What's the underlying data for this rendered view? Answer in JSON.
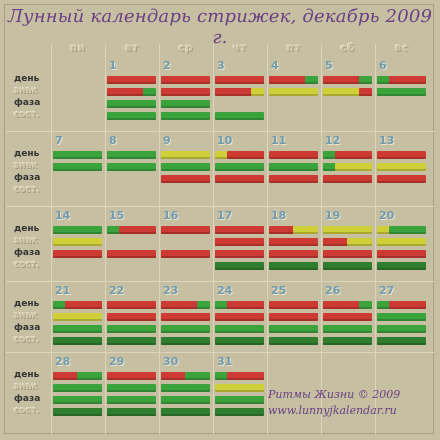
{
  "title": "Лунный календарь стрижек, декабрь 2009 г.",
  "weekdays": [
    "пн",
    "вт",
    "ср",
    "чт",
    "пт",
    "сб",
    "вс"
  ],
  "row_labels": [
    "день",
    "знак",
    "фаза",
    "сост."
  ],
  "credit": {
    "line1": "Ритмы Жизни © 2009",
    "line2": "www.lunnyjkalendar.ru"
  },
  "colors": {
    "good": "#3aa33c",
    "bad": "#cc3a33",
    "neutral": "#cfcf3a",
    "dark_good": "#2f7d2e",
    "title": "#6a3f86"
  },
  "days": [
    {
      "day": "1",
      "col": 1,
      "week": 0,
      "bars": [
        [
          "r"
        ],
        [
          "r",
          "r",
          "r",
          "g"
        ],
        [
          "g"
        ],
        [
          "g"
        ]
      ]
    },
    {
      "day": "2",
      "col": 2,
      "week": 0,
      "bars": [
        [
          "r"
        ],
        [
          "r"
        ],
        [
          "g"
        ],
        [
          "g"
        ]
      ]
    },
    {
      "day": "3",
      "col": 3,
      "week": 0,
      "bars": [
        [
          "r"
        ],
        [
          "r",
          "r",
          "r",
          "y"
        ],
        [],
        [
          "g"
        ]
      ]
    },
    {
      "day": "4",
      "col": 4,
      "week": 0,
      "bars": [
        [
          "r",
          "r",
          "r",
          "g"
        ],
        [
          "y"
        ],
        [],
        []
      ]
    },
    {
      "day": "5",
      "col": 5,
      "week": 0,
      "bars": [
        [
          "r",
          "r",
          "r",
          "g"
        ],
        [
          "y",
          "y",
          "y",
          "r"
        ],
        [],
        []
      ]
    },
    {
      "day": "6",
      "col": 6,
      "week": 0,
      "bars": [
        [
          "g",
          "r",
          "r",
          "r"
        ],
        [
          "g"
        ],
        [],
        []
      ]
    },
    {
      "day": "7",
      "col": 0,
      "week": 1,
      "bars": [
        [
          "g"
        ],
        [
          "g"
        ],
        [],
        []
      ]
    },
    {
      "day": "8",
      "col": 1,
      "week": 1,
      "bars": [
        [
          "g"
        ],
        [
          "g"
        ],
        [],
        []
      ]
    },
    {
      "day": "9",
      "col": 2,
      "week": 1,
      "bars": [
        [
          "y"
        ],
        [
          "g"
        ],
        [
          "r"
        ],
        []
      ]
    },
    {
      "day": "10",
      "col": 3,
      "week": 1,
      "bars": [
        [
          "y",
          "r",
          "r",
          "r"
        ],
        [
          "g"
        ],
        [
          "r"
        ],
        []
      ]
    },
    {
      "day": "11",
      "col": 4,
      "week": 1,
      "bars": [
        [
          "r"
        ],
        [
          "g"
        ],
        [
          "r"
        ],
        []
      ]
    },
    {
      "day": "12",
      "col": 5,
      "week": 1,
      "bars": [
        [
          "g",
          "r",
          "r",
          "r"
        ],
        [
          "g",
          "y",
          "y",
          "y"
        ],
        [
          "r"
        ],
        []
      ]
    },
    {
      "day": "13",
      "col": 6,
      "week": 1,
      "bars": [
        [
          "r"
        ],
        [
          "y"
        ],
        [
          "r"
        ],
        []
      ]
    },
    {
      "day": "14",
      "col": 0,
      "week": 2,
      "bars": [
        [
          "g"
        ],
        [
          "y"
        ],
        [
          "r"
        ],
        []
      ]
    },
    {
      "day": "15",
      "col": 1,
      "week": 2,
      "bars": [
        [
          "g",
          "r",
          "r",
          "r"
        ],
        [],
        [
          "r"
        ],
        []
      ]
    },
    {
      "day": "16",
      "col": 2,
      "week": 2,
      "bars": [
        [
          "r"
        ],
        [],
        [
          "r"
        ],
        []
      ]
    },
    {
      "day": "17",
      "col": 3,
      "week": 2,
      "bars": [
        [
          "r"
        ],
        [
          "r"
        ],
        [
          "r"
        ],
        [
          "dg"
        ]
      ]
    },
    {
      "day": "18",
      "col": 4,
      "week": 2,
      "bars": [
        [
          "r",
          "r",
          "y",
          "y"
        ],
        [
          "r"
        ],
        [
          "r"
        ],
        [
          "dg"
        ]
      ]
    },
    {
      "day": "19",
      "col": 5,
      "week": 2,
      "bars": [
        [
          "y"
        ],
        [
          "r",
          "r",
          "y",
          "y"
        ],
        [
          "r"
        ],
        [
          "dg"
        ]
      ]
    },
    {
      "day": "20",
      "col": 6,
      "week": 2,
      "bars": [
        [
          "y",
          "g",
          "g",
          "g"
        ],
        [
          "y"
        ],
        [
          "r"
        ],
        [
          "dg"
        ]
      ]
    },
    {
      "day": "21",
      "col": 0,
      "week": 3,
      "bars": [
        [
          "g",
          "r",
          "r",
          "r"
        ],
        [
          "y"
        ],
        [
          "g"
        ],
        [
          "dg"
        ]
      ]
    },
    {
      "day": "22",
      "col": 1,
      "week": 3,
      "bars": [
        [
          "r"
        ],
        [
          "r"
        ],
        [
          "g"
        ],
        [
          "dg"
        ]
      ]
    },
    {
      "day": "23",
      "col": 2,
      "week": 3,
      "bars": [
        [
          "r",
          "r",
          "r",
          "g"
        ],
        [
          "r"
        ],
        [
          "g"
        ],
        [
          "dg"
        ]
      ]
    },
    {
      "day": "24",
      "col": 3,
      "week": 3,
      "bars": [
        [
          "g",
          "r",
          "r",
          "r"
        ],
        [
          "r"
        ],
        [
          "g"
        ],
        [
          "dg"
        ]
      ]
    },
    {
      "day": "25",
      "col": 4,
      "week": 3,
      "bars": [
        [
          "r"
        ],
        [
          "r"
        ],
        [
          "g"
        ],
        [
          "dg"
        ]
      ]
    },
    {
      "day": "26",
      "col": 5,
      "week": 3,
      "bars": [
        [
          "r",
          "r",
          "r",
          "g"
        ],
        [
          "r"
        ],
        [
          "g"
        ],
        [
          "dg"
        ]
      ]
    },
    {
      "day": "27",
      "col": 6,
      "week": 3,
      "bars": [
        [
          "g",
          "r",
          "r",
          "r"
        ],
        [
          "g"
        ],
        [
          "g"
        ],
        [
          "dg"
        ]
      ]
    },
    {
      "day": "28",
      "col": 0,
      "week": 4,
      "bars": [
        [
          "r",
          "r",
          "g",
          "g"
        ],
        [
          "g"
        ],
        [
          "g"
        ],
        [
          "dg"
        ]
      ]
    },
    {
      "day": "29",
      "col": 1,
      "week": 4,
      "bars": [
        [
          "r"
        ],
        [
          "g"
        ],
        [
          "g"
        ],
        [
          "dg"
        ]
      ]
    },
    {
      "day": "30",
      "col": 2,
      "week": 4,
      "bars": [
        [
          "r",
          "r",
          "g",
          "g"
        ],
        [
          "g"
        ],
        [
          "g"
        ],
        [
          "dg"
        ]
      ]
    },
    {
      "day": "31",
      "col": 3,
      "week": 4,
      "bars": [
        [
          "g",
          "r",
          "r",
          "r"
        ],
        [
          "y"
        ],
        [
          "g"
        ],
        [
          "dg"
        ]
      ]
    }
  ]
}
